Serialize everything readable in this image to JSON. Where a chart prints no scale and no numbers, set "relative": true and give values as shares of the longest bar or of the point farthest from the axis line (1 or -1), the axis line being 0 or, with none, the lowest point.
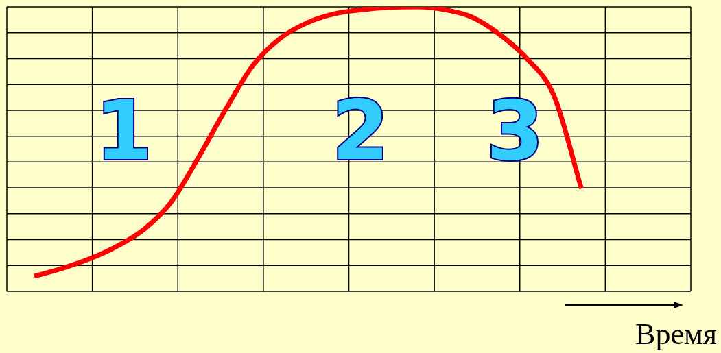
{
  "chart_data": {
    "type": "line",
    "relative": true,
    "xlabel": "Время",
    "annotations": [
      "1",
      "2",
      "3"
    ],
    "grid": true,
    "marker": "none",
    "line_style": "solid",
    "categories": [
      null,
      null,
      null,
      null,
      null,
      null,
      null,
      null,
      null,
      null,
      null,
      null,
      null,
      null,
      null,
      null,
      null,
      null,
      null,
      null,
      null,
      null,
      null,
      null,
      null,
      null
    ],
    "series": [
      {
        "color": "#ff0000",
        "values": [
          null,
          0.053,
          0.08,
          0.113,
          0.157,
          0.217,
          0.313,
          0.47,
          0.64,
          0.795,
          0.89,
          0.945,
          0.976,
          0.99,
          0.998,
          1,
          0.99,
          0.964,
          0.904,
          0.819,
          0.687,
          0.361,
          null,
          null,
          null,
          null
        ]
      }
    ]
  }
}
